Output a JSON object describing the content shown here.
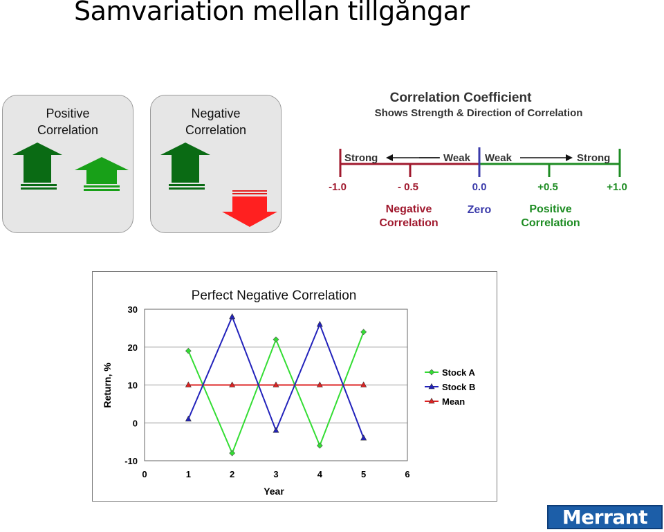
{
  "slide": {
    "title": "Samvariation mellan tillgångar",
    "logo_text": "Merrant"
  },
  "panels": [
    {
      "title": "Positive\nCorrelation"
    },
    {
      "title": "Negative\nCorrelation"
    }
  ],
  "scale": {
    "title": "Correlation Coefficient",
    "subtitle": "Shows Strength & Direction of Correlation",
    "negative_side": {
      "strong": "Strong",
      "weak": "Weak",
      "color": "#a0192e"
    },
    "positive_side": {
      "weak": "Weak",
      "strong": "Strong",
      "color": "#1e8c23"
    },
    "zero_color": "#3a3aaa",
    "ticks": [
      "-1.0",
      "- 0.5",
      "0.0",
      "+0.5",
      "+1.0"
    ],
    "labels": {
      "negative": "Negative\nCorrelation",
      "zero": "Zero",
      "positive": "Positive\nCorrelation"
    }
  },
  "chart_data": {
    "type": "line",
    "title": "Perfect Negative Correlation",
    "xlabel": "Year",
    "ylabel": "Return, %",
    "xlim": [
      0,
      6
    ],
    "ylim": [
      -10,
      30
    ],
    "x_ticks": [
      0,
      1,
      2,
      3,
      4,
      5,
      6
    ],
    "y_ticks": [
      -10,
      0,
      10,
      20,
      30
    ],
    "grid": "horizontal",
    "legend_position": "right",
    "x": [
      1,
      2,
      3,
      4,
      5
    ],
    "series": [
      {
        "name": "Stock A",
        "values": [
          19,
          -8,
          22,
          -6,
          24
        ],
        "color": "#33dd33",
        "marker": "diamond"
      },
      {
        "name": "Stock B",
        "values": [
          1,
          28,
          -2,
          26,
          -4
        ],
        "color": "#2222bb",
        "marker": "triangle"
      },
      {
        "name": "Mean",
        "values": [
          10,
          10,
          10,
          10,
          10
        ],
        "color": "#dd2222",
        "marker": "triangle"
      }
    ]
  }
}
